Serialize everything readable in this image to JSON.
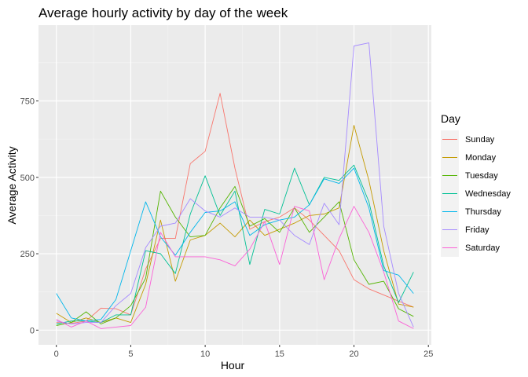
{
  "chart_data": {
    "type": "line",
    "title": "Average hourly activity by day of the week",
    "xlabel": "Hour",
    "ylabel": "Average Activity",
    "xlim": [
      -1.2,
      25.2
    ],
    "ylim": [
      -48,
      998
    ],
    "x_ticks": [
      0,
      5,
      10,
      15,
      20,
      25
    ],
    "x_tick_labels": [
      "0",
      "5",
      "10",
      "15",
      "20",
      "25"
    ],
    "y_ticks": [
      0,
      250,
      500,
      750
    ],
    "y_tick_labels": [
      "0",
      "250",
      "500",
      "750"
    ],
    "x": [
      0,
      1,
      2,
      3,
      4,
      5,
      6,
      7,
      8,
      9,
      10,
      11,
      12,
      13,
      14,
      15,
      16,
      17,
      18,
      19,
      20,
      21,
      22,
      23,
      24
    ],
    "legend_title": "Day",
    "legend_position": "right",
    "grid": true,
    "series": [
      {
        "name": "Sunday",
        "color": "#F8766D",
        "values": [
          25,
          22,
          30,
          72,
          70,
          50,
          200,
          300,
          300,
          545,
          585,
          775,
          530,
          330,
          355,
          370,
          400,
          360,
          310,
          260,
          165,
          135,
          115,
          95,
          75
        ]
      },
      {
        "name": "Monday",
        "color": "#C49A00",
        "values": [
          55,
          25,
          40,
          25,
          40,
          25,
          150,
          360,
          160,
          295,
          310,
          350,
          305,
          360,
          310,
          330,
          350,
          375,
          380,
          400,
          670,
          490,
          260,
          85,
          75
        ]
      },
      {
        "name": "Tuesday",
        "color": "#53B400",
        "values": [
          15,
          25,
          60,
          20,
          40,
          80,
          170,
          455,
          370,
          305,
          310,
          400,
          470,
          340,
          365,
          320,
          400,
          320,
          370,
          420,
          230,
          150,
          160,
          70,
          45
        ]
      },
      {
        "name": "Wednesday",
        "color": "#00C094",
        "values": [
          20,
          30,
          30,
          25,
          50,
          50,
          260,
          250,
          185,
          380,
          505,
          375,
          455,
          215,
          395,
          380,
          530,
          410,
          500,
          490,
          540,
          420,
          210,
          90,
          190
        ]
      },
      {
        "name": "Thursday",
        "color": "#00B6EB",
        "values": [
          120,
          40,
          30,
          35,
          100,
          260,
          420,
          305,
          245,
          320,
          385,
          390,
          420,
          310,
          345,
          360,
          370,
          410,
          495,
          480,
          530,
          400,
          195,
          180,
          120
        ]
      },
      {
        "name": "Friday",
        "color": "#A58AFF",
        "values": [
          30,
          20,
          25,
          25,
          80,
          120,
          270,
          340,
          350,
          430,
          390,
          370,
          400,
          370,
          370,
          360,
          310,
          280,
          415,
          345,
          930,
          940,
          340,
          120,
          10
        ]
      },
      {
        "name": "Saturday",
        "color": "#FB61D7",
        "values": [
          35,
          10,
          30,
          5,
          10,
          15,
          75,
          320,
          240,
          240,
          240,
          230,
          210,
          265,
          355,
          215,
          405,
          390,
          165,
          300,
          405,
          320,
          190,
          30,
          5
        ]
      }
    ]
  }
}
